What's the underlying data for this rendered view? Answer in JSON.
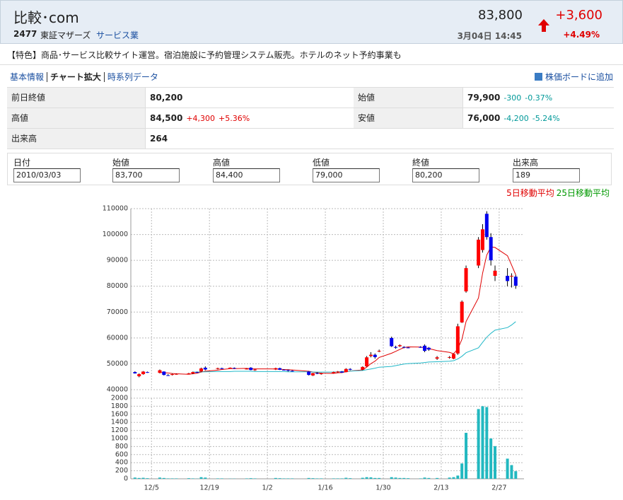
{
  "header": {
    "title": "比較･com",
    "code": "2477",
    "market": "東証マザーズ",
    "sector": "サービス業",
    "price": "83,800",
    "change": "+3,600",
    "change_pct": "+4.49%",
    "time": "3月04日 14:45"
  },
  "description": "【特色】商品･サービス比較サイト運営。宿泊施設に予約管理システム販売。ホテルのネット予約事業も",
  "links": [
    "基本情報",
    "チャート拡大",
    "時系列データ"
  ],
  "add_link": "株価ボードに追加",
  "quote_table": [
    [
      {
        "label": "前日終値",
        "value": "80,200"
      },
      {
        "label": "始値",
        "value": "79,900",
        "change": "-300",
        "change_pct": "-0.37%"
      }
    ],
    [
      {
        "label": "高値",
        "value": "84,500",
        "change": "+4,300",
        "change_pct": "+5.36%"
      },
      {
        "label": "安値",
        "value": "76,000",
        "change": "-4,200",
        "change_pct": "-5.24%"
      }
    ],
    [
      {
        "label": "出来高",
        "value": "264"
      }
    ]
  ],
  "ohlc_form": {
    "labels": [
      "日付",
      "始値",
      "高値",
      "低値",
      "終値",
      "出来高"
    ],
    "values": [
      "2010/03/03",
      "83,700",
      "84,400",
      "79,000",
      "80,200",
      "189"
    ]
  },
  "chart_data": {
    "type": "candlestick",
    "x": [
      "12/1",
      "12/2",
      "12/3",
      "12/4",
      "12/7",
      "12/8",
      "12/9",
      "12/10",
      "12/11",
      "12/14",
      "12/15",
      "12/16",
      "12/17",
      "12/18",
      "12/21",
      "12/22",
      "12/24",
      "12/25",
      "12/28",
      "12/29",
      "12/30",
      "1/4",
      "1/5",
      "1/6",
      "1/7",
      "1/8",
      "1/12",
      "1/13",
      "1/14",
      "1/15",
      "1/18",
      "1/19",
      "1/20",
      "1/21",
      "1/22",
      "1/25",
      "1/26",
      "1/27",
      "1/28",
      "1/29",
      "2/1",
      "2/2",
      "2/3",
      "2/4",
      "2/5",
      "2/8",
      "2/9",
      "2/10",
      "2/12",
      "2/15",
      "2/16",
      "2/17",
      "2/18",
      "2/19",
      "2/22",
      "2/23",
      "2/24",
      "2/25",
      "2/26",
      "3/1",
      "3/2",
      "3/3"
    ],
    "open": [
      46800,
      45200,
      46000,
      46800,
      46500,
      47000,
      45600,
      45700,
      46000,
      46200,
      46300,
      46800,
      47000,
      48500,
      48000,
      48300,
      48500,
      48400,
      48000,
      48500,
      47500,
      47800,
      48300,
      47700,
      47600,
      47300,
      47000,
      45500,
      46400,
      46000,
      46300,
      46800,
      47000,
      46800,
      48000,
      47700,
      49000,
      53000,
      53500,
      55000,
      60000,
      56500,
      56800,
      56500,
      56300,
      56500,
      57000,
      56200,
      52000,
      52500,
      52000,
      54000,
      66000,
      78000,
      88000,
      94000,
      108000,
      99000,
      84000,
      84000,
      84000,
      83700
    ],
    "high": [
      47100,
      46300,
      47200,
      47000,
      47800,
      47100,
      46000,
      46200,
      46300,
      46500,
      47000,
      47000,
      48500,
      49000,
      48500,
      48500,
      48600,
      48600,
      48300,
      48700,
      48000,
      48500,
      48500,
      47900,
      47800,
      47500,
      47200,
      46500,
      46800,
      46500,
      47000,
      47200,
      47200,
      48300,
      48300,
      49000,
      53000,
      54500,
      54000,
      55500,
      60500,
      57000,
      57500,
      56800,
      56500,
      56800,
      57500,
      56500,
      53000,
      53000,
      54000,
      65500,
      74500,
      88000,
      99000,
      104000,
      109000,
      100500,
      88000,
      87000,
      85000,
      84400
    ],
    "low": [
      46200,
      44800,
      45800,
      46500,
      46300,
      45500,
      45300,
      45500,
      45800,
      46000,
      46000,
      46500,
      46800,
      47500,
      47800,
      48000,
      48300,
      48000,
      47800,
      47500,
      47300,
      47600,
      47600,
      47500,
      47000,
      47000,
      45500,
      45300,
      46000,
      45800,
      46200,
      46500,
      46500,
      46700,
      47500,
      47500,
      48800,
      52500,
      52000,
      54500,
      56500,
      55800,
      56500,
      56000,
      56000,
      56200,
      54500,
      55000,
      51500,
      52000,
      51800,
      53500,
      65800,
      77500,
      87000,
      93000,
      98000,
      88000,
      82000,
      80000,
      79500,
      79000
    ],
    "close": [
      46300,
      46000,
      47000,
      46600,
      47500,
      45700,
      45500,
      46000,
      46100,
      46300,
      46800,
      46600,
      48200,
      47800,
      48300,
      48000,
      48500,
      48200,
      48100,
      47600,
      47800,
      48300,
      47700,
      47600,
      47300,
      47200,
      45700,
      46400,
      46200,
      46300,
      46800,
      47000,
      46600,
      48000,
      47700,
      48800,
      52500,
      53500,
      52600,
      55000,
      56800,
      56200,
      57200,
      56300,
      56200,
      56400,
      55000,
      55500,
      52500,
      52600,
      53800,
      64500,
      74000,
      87000,
      98000,
      102000,
      99000,
      90000,
      86000,
      82000,
      84000,
      80200
    ],
    "up_color": "#ff0000",
    "down_color": "#0000ee",
    "series": [
      {
        "name": "5日移動平均",
        "color": "#e00000",
        "legend_color": "#e00000",
        "values": [
          null,
          null,
          null,
          null,
          46680,
          46560,
          46460,
          46260,
          46160,
          45920,
          46140,
          46360,
          46800,
          47140,
          47540,
          47780,
          48160,
          48160,
          48220,
          48080,
          48040,
          48000,
          47900,
          47800,
          47740,
          47620,
          47100,
          46840,
          46560,
          46360,
          46280,
          46540,
          46580,
          46940,
          47220,
          47620,
          48720,
          50100,
          51020,
          52480,
          54080,
          54820,
          55560,
          56300,
          56540,
          56460,
          56220,
          55880,
          55120,
          54400,
          53880,
          55780,
          59480,
          66380,
          75460,
          85100,
          92000,
          95200,
          95000,
          91800,
          88200,
          84440
        ]
      },
      {
        "name": "25日移動平均",
        "color": "#22b8c8",
        "legend_color": "#009900",
        "values": [
          null,
          null,
          null,
          null,
          null,
          null,
          null,
          null,
          null,
          null,
          46800,
          46800,
          46900,
          46900,
          47000,
          47000,
          47000,
          47100,
          47100,
          47100,
          47000,
          47000,
          47000,
          47000,
          46900,
          46900,
          46900,
          46800,
          46800,
          46800,
          46800,
          46900,
          47000,
          47100,
          47200,
          47400,
          47700,
          48000,
          48300,
          48700,
          49000,
          49300,
          49600,
          49900,
          50100,
          50300,
          50500,
          50700,
          50800,
          51000,
          51200,
          51900,
          52900,
          54300,
          56200,
          58300,
          60300,
          61800,
          63000,
          64000,
          65000,
          66300
        ]
      }
    ],
    "xlim": [
      "11/30",
      "3/5"
    ],
    "xticks": [
      "12/5",
      "12/19",
      "1/2",
      "1/16",
      "1/30",
      "2/13",
      "2/27"
    ],
    "ylim": [
      40000,
      110000
    ],
    "yticks": [
      40000,
      50000,
      60000,
      70000,
      80000,
      90000,
      100000,
      110000
    ],
    "grid": true,
    "volume": {
      "color": "#22b8c0",
      "values": [
        30,
        20,
        25,
        15,
        30,
        20,
        10,
        10,
        10,
        15,
        10,
        5,
        40,
        30,
        10,
        10,
        5,
        5,
        10,
        15,
        10,
        20,
        15,
        10,
        10,
        10,
        20,
        15,
        10,
        10,
        10,
        10,
        10,
        25,
        15,
        25,
        40,
        35,
        20,
        20,
        40,
        30,
        20,
        20,
        15,
        10,
        30,
        20,
        20,
        30,
        40,
        80,
        380,
        1140,
        1730,
        1800,
        1780,
        1000,
        810,
        500,
        340,
        189
      ],
      "ylim": [
        0,
        2000
      ],
      "yticks": [
        0,
        200,
        400,
        600,
        800,
        1000,
        1200,
        1400,
        1600,
        1800,
        2000
      ]
    }
  }
}
